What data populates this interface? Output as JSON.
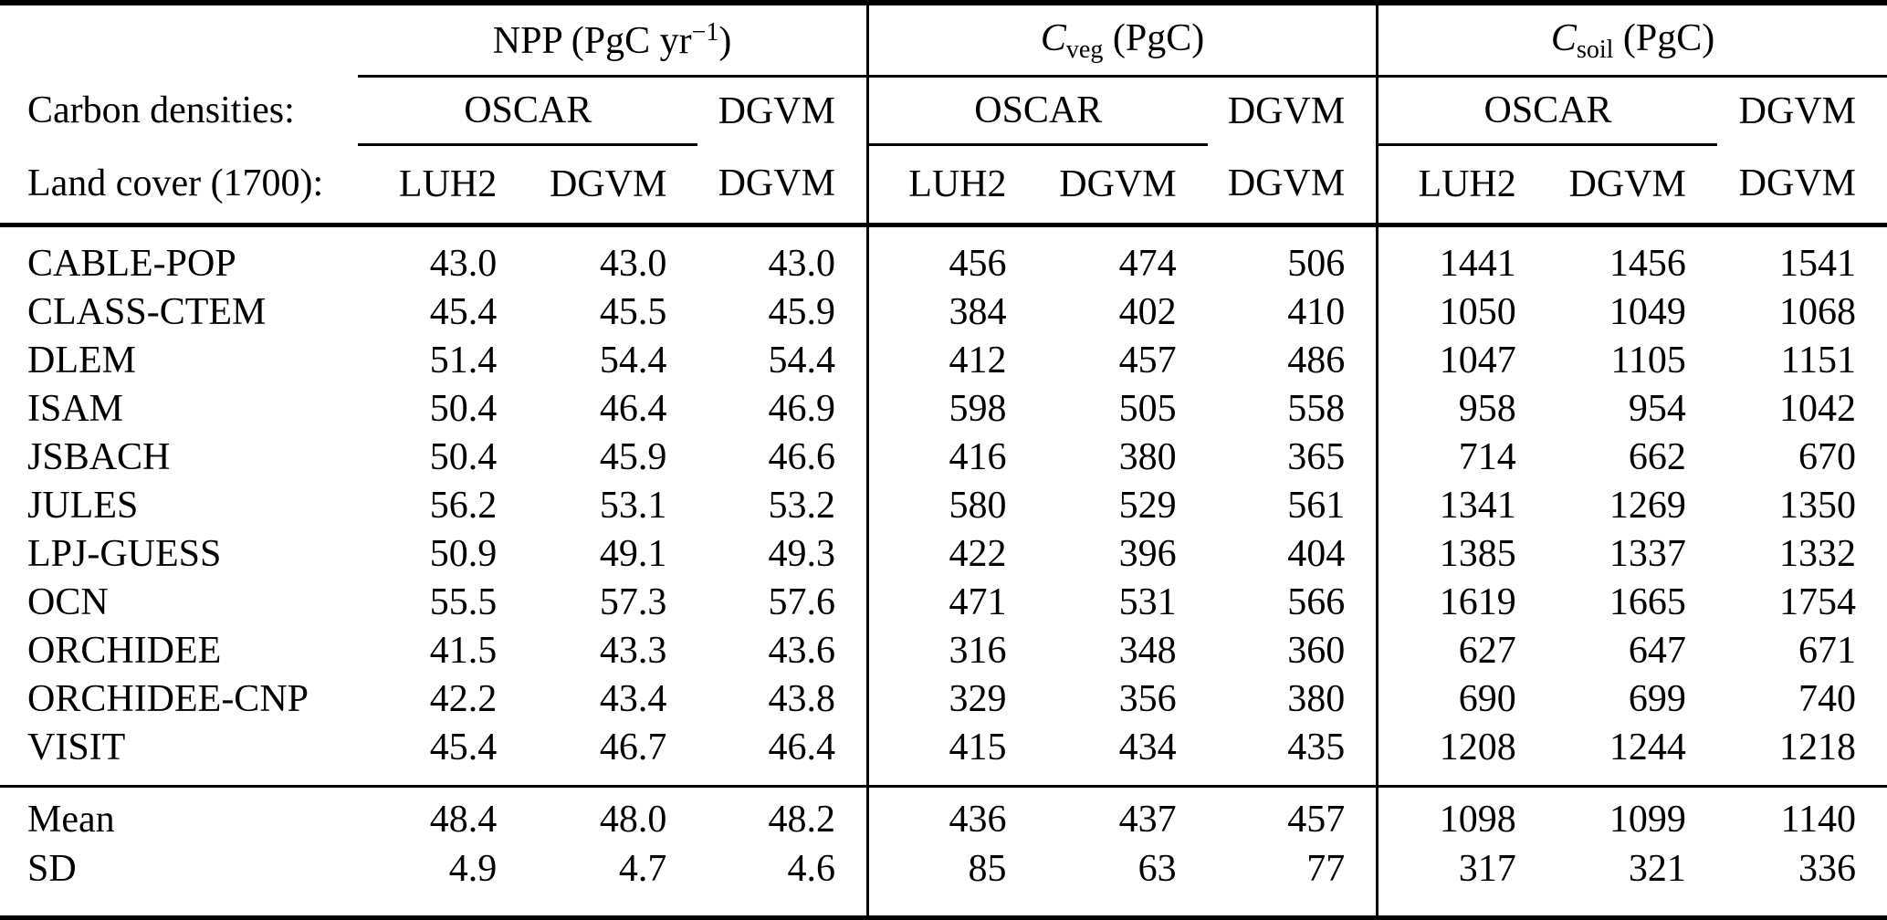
{
  "table": {
    "row2_label": "Carbon densities:",
    "row3_label": "Land cover (1700):",
    "groups": [
      {
        "title_pre": "NPP (PgC yr",
        "title_sup": "−1",
        "title_post": ")",
        "densities": [
          "OSCAR",
          "DGVM"
        ],
        "land_cover": [
          "LUH2",
          "DGVM",
          "DGVM"
        ]
      },
      {
        "title_pre": "C",
        "title_sub": "veg",
        "title_post": " (PgC)",
        "densities": [
          "OSCAR",
          "DGVM"
        ],
        "land_cover": [
          "LUH2",
          "DGVM",
          "DGVM"
        ]
      },
      {
        "title_pre": "C",
        "title_sub": "soil",
        "title_post": " (PgC)",
        "densities": [
          "OSCAR",
          "DGVM"
        ],
        "land_cover": [
          "LUH2",
          "DGVM",
          "DGVM"
        ]
      }
    ],
    "rows": [
      {
        "model": "CABLE-POP",
        "values": [
          "43.0",
          "43.0",
          "43.0",
          "456",
          "474",
          "506",
          "1441",
          "1456",
          "1541"
        ]
      },
      {
        "model": "CLASS-CTEM",
        "values": [
          "45.4",
          "45.5",
          "45.9",
          "384",
          "402",
          "410",
          "1050",
          "1049",
          "1068"
        ]
      },
      {
        "model": "DLEM",
        "values": [
          "51.4",
          "54.4",
          "54.4",
          "412",
          "457",
          "486",
          "1047",
          "1105",
          "1151"
        ]
      },
      {
        "model": "ISAM",
        "values": [
          "50.4",
          "46.4",
          "46.9",
          "598",
          "505",
          "558",
          "958",
          "954",
          "1042"
        ]
      },
      {
        "model": "JSBACH",
        "values": [
          "50.4",
          "45.9",
          "46.6",
          "416",
          "380",
          "365",
          "714",
          "662",
          "670"
        ]
      },
      {
        "model": "JULES",
        "values": [
          "56.2",
          "53.1",
          "53.2",
          "580",
          "529",
          "561",
          "1341",
          "1269",
          "1350"
        ]
      },
      {
        "model": "LPJ-GUESS",
        "values": [
          "50.9",
          "49.1",
          "49.3",
          "422",
          "396",
          "404",
          "1385",
          "1337",
          "1332"
        ]
      },
      {
        "model": "OCN",
        "values": [
          "55.5",
          "57.3",
          "57.6",
          "471",
          "531",
          "566",
          "1619",
          "1665",
          "1754"
        ]
      },
      {
        "model": "ORCHIDEE",
        "values": [
          "41.5",
          "43.3",
          "43.6",
          "316",
          "348",
          "360",
          "627",
          "647",
          "671"
        ]
      },
      {
        "model": "ORCHIDEE-CNP",
        "values": [
          "42.2",
          "43.4",
          "43.8",
          "329",
          "356",
          "380",
          "690",
          "699",
          "740"
        ]
      },
      {
        "model": "VISIT",
        "values": [
          "45.4",
          "46.7",
          "46.4",
          "415",
          "434",
          "435",
          "1208",
          "1244",
          "1218"
        ]
      }
    ],
    "summary_rows": [
      {
        "model": "Mean",
        "values": [
          "48.4",
          "48.0",
          "48.2",
          "436",
          "437",
          "457",
          "1098",
          "1099",
          "1140"
        ]
      },
      {
        "model": "SD",
        "values": [
          "4.9",
          "4.7",
          "4.6",
          "85",
          "63",
          "77",
          "317",
          "321",
          "336"
        ]
      }
    ]
  }
}
